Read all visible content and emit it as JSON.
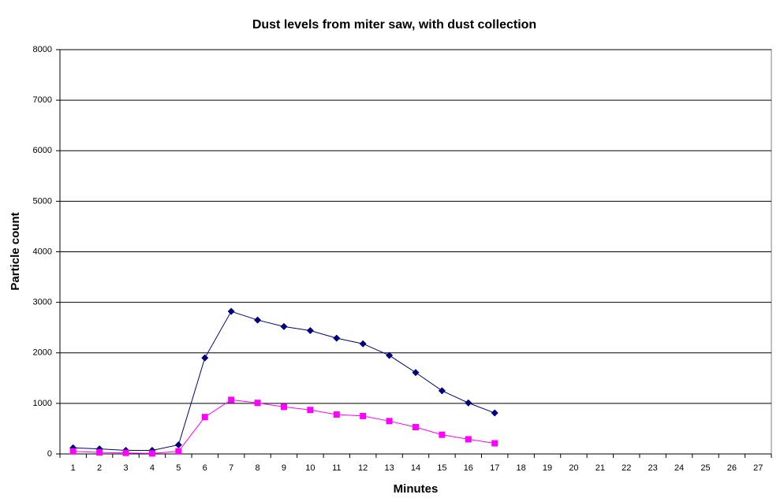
{
  "chart_data": {
    "type": "line",
    "title": "Dust levels from miter saw, with dust collection",
    "x_label": "Minutes",
    "y_label": "Particle count",
    "categories": [
      1,
      2,
      3,
      4,
      5,
      6,
      7,
      8,
      9,
      10,
      11,
      12,
      13,
      14,
      15,
      16,
      17,
      18,
      19,
      20,
      21,
      22,
      23,
      24,
      25,
      26,
      27
    ],
    "series": [
      {
        "color": "#000080",
        "marker": "diamond",
        "values": [
          120,
          100,
          70,
          70,
          180,
          1900,
          2820,
          2650,
          2520,
          2440,
          2290,
          2180,
          1950,
          1610,
          1250,
          1010,
          810,
          null,
          null,
          null,
          null,
          null,
          null,
          null,
          null,
          null,
          null
        ]
      },
      {
        "color": "#ff00ff",
        "marker": "square",
        "values": [
          50,
          30,
          20,
          10,
          50,
          730,
          1070,
          1010,
          930,
          870,
          780,
          750,
          650,
          530,
          380,
          290,
          210,
          null,
          null,
          null,
          null,
          null,
          null,
          null,
          null,
          null,
          null
        ]
      }
    ],
    "ylim": [
      0,
      8000
    ],
    "yticks": [
      0,
      1000,
      2000,
      3000,
      4000,
      5000,
      6000,
      7000,
      8000
    ],
    "grid": true
  }
}
